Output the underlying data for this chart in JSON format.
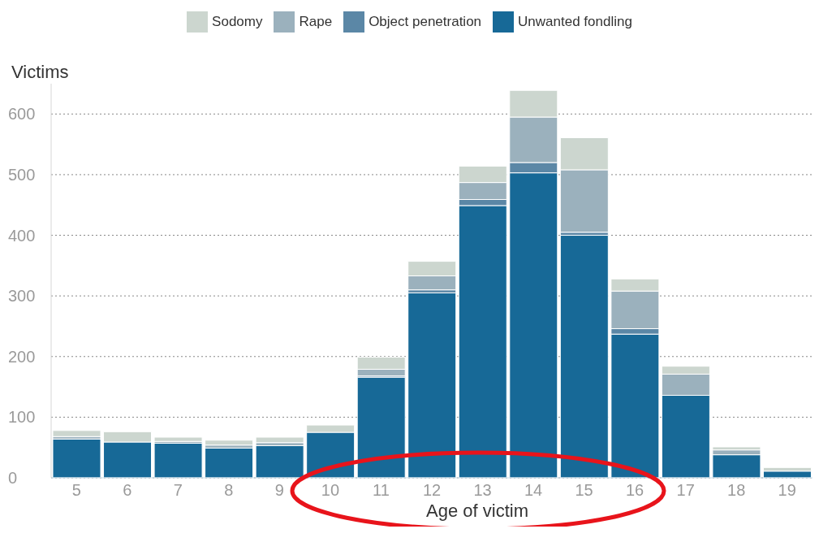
{
  "chart_data": {
    "type": "bar",
    "stacked": true,
    "ylabel": "Victims",
    "xlabel": "Age of victim",
    "categories": [
      "5",
      "6",
      "7",
      "8",
      "9",
      "10",
      "11",
      "12",
      "13",
      "14",
      "15",
      "16",
      "17",
      "18",
      "19"
    ],
    "series": [
      {
        "name": "Unwanted fondling",
        "color": "#176997",
        "values": [
          64,
          59,
          57,
          49,
          53,
          75,
          166,
          305,
          449,
          503,
          400,
          237,
          136,
          38,
          11
        ]
      },
      {
        "name": "Object penetration",
        "color": "#5b87a6",
        "values": [
          0,
          0,
          0,
          0,
          0,
          0,
          2,
          5,
          10,
          17,
          5,
          9,
          0,
          0,
          0
        ]
      },
      {
        "name": "Rape",
        "color": "#9bb1bd",
        "values": [
          4,
          0,
          3,
          5,
          5,
          0,
          11,
          23,
          28,
          75,
          103,
          62,
          35,
          8,
          0
        ]
      },
      {
        "name": "Sodomy",
        "color": "#ccd6cf",
        "values": [
          10,
          17,
          7,
          8,
          9,
          12,
          20,
          24,
          27,
          44,
          53,
          20,
          13,
          5,
          6
        ]
      }
    ],
    "ylim": [
      0,
      650
    ],
    "yticks": [
      0,
      100,
      200,
      300,
      400,
      500,
      600
    ],
    "grid": "y",
    "legend": "top"
  }
}
